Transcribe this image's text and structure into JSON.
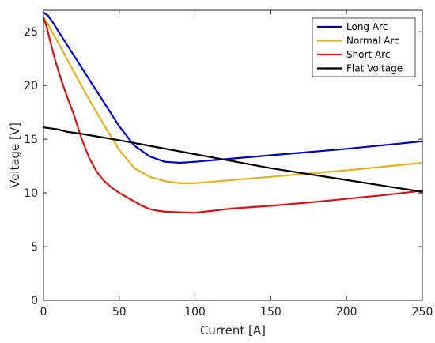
{
  "chart_data": {
    "type": "line",
    "title": "",
    "xlabel": "Current [A]",
    "ylabel": "Voltage [V]",
    "xlim": [
      0,
      250
    ],
    "ylim": [
      0,
      27
    ],
    "xticks": [
      0,
      50,
      100,
      150,
      200,
      250
    ],
    "yticks": [
      0,
      5,
      10,
      15,
      20,
      25
    ],
    "grid": false,
    "legend_position": "top-right",
    "series": [
      {
        "name": "Long Arc",
        "color": "#0000cc",
        "x": [
          0,
          3,
          6,
          10,
          20,
          30,
          40,
          50,
          60,
          70,
          80,
          90,
          100,
          150,
          200,
          250
        ],
        "y": [
          26.8,
          26.5,
          25.9,
          25.0,
          22.8,
          20.6,
          18.4,
          16.2,
          14.4,
          13.4,
          12.9,
          12.8,
          12.9,
          13.5,
          14.1,
          14.8
        ]
      },
      {
        "name": "Normal Arc",
        "color": "#e6b020",
        "x": [
          0,
          3,
          6,
          10,
          20,
          30,
          40,
          50,
          60,
          70,
          80,
          90,
          100,
          150,
          200,
          250
        ],
        "y": [
          26.3,
          25.7,
          24.9,
          23.9,
          21.3,
          18.7,
          16.3,
          14.0,
          12.3,
          11.5,
          11.1,
          10.9,
          10.9,
          11.5,
          12.1,
          12.8
        ]
      },
      {
        "name": "Short Arc",
        "color": "#d91414",
        "x": [
          0,
          2,
          5,
          8,
          12,
          16,
          20,
          25,
          30,
          35,
          40,
          45,
          50,
          55,
          60,
          65,
          70,
          75,
          80,
          90,
          100,
          125,
          150,
          175,
          200,
          225,
          250
        ],
        "y": [
          26.3,
          25.5,
          23.8,
          22.2,
          20.4,
          18.8,
          17.3,
          15.1,
          13.3,
          12.0,
          11.1,
          10.5,
          10.0,
          9.6,
          9.2,
          8.8,
          8.5,
          8.35,
          8.25,
          8.2,
          8.15,
          8.55,
          8.8,
          9.1,
          9.45,
          9.8,
          10.2
        ]
      },
      {
        "name": "Flat Voltage",
        "color": "#000000",
        "x": [
          0,
          10,
          15,
          25,
          50,
          100,
          150,
          200,
          250
        ],
        "y": [
          16.1,
          15.9,
          15.7,
          15.5,
          14.9,
          13.6,
          12.3,
          11.2,
          10.1
        ]
      }
    ]
  }
}
